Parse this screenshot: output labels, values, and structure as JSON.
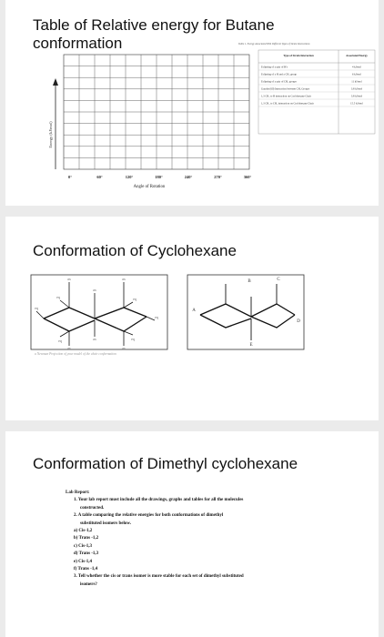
{
  "slide1": {
    "title_line1": "Table of Relative energy for Butane",
    "title_line2": "conformation",
    "y_axis_label": "Energy (kJ/mol)",
    "x_axis_label": "Angle of Rotation",
    "x_ticks": [
      "0°",
      "60°",
      "120°",
      "180°",
      "240°",
      "270°",
      "360°"
    ],
    "grid_rows": 10,
    "grid_cols": 12,
    "table_caption": "Table 1. Energy Associated With Different Types of Strain Interactions",
    "table_headers": [
      "Type of Strain Interaction",
      "Associated Energy"
    ],
    "table_rows": [
      [
        "Eclipsing of a pair of H's",
        "4 kJ/mol"
      ],
      [
        "Eclipsing of a H and a CH₃ group",
        "6 kJ/mol"
      ],
      [
        "Eclipsing of a pair of CH₃ groups",
        "11 kJ/mol"
      ],
      [
        "Gauche (60) Interaction between CH₃ Groups",
        "3.8 kJ/mol"
      ],
      [
        "1,3 CH₃ to H interaction on Cyclohexane Chair",
        "3.8 kJ/mol"
      ],
      [
        "1,3 CH₃ to CH₃ interaction on Cyclohexane Chair",
        "15.5 kJ/mol"
      ]
    ]
  },
  "slide2": {
    "title": "Conformation of Cyclohexane",
    "chair_labels": {
      "ax": "ax",
      "eq": "eq"
    },
    "letters": [
      "B",
      "C",
      "A",
      "D",
      "E"
    ],
    "bottom_caption": "a Newman Projection of your model of the chair conformation"
  },
  "slide3": {
    "title": "Conformation of Dimethyl cyclohexane",
    "heading": "Lab Report:",
    "items": [
      "1.  Your lab report must include all the drawings, graphs and tables for all the molecules",
      "constructed.",
      "2.  A table comparing the relative energies for both conformations of dimethyl",
      "substituted isomers below.",
      "a)  Cis-1,2",
      "b)  Trans -1,2",
      "c)  Cis-1,3",
      "d)  Trans -1,3",
      "e)  Cis-1,4",
      "f)  Trans -1,4",
      "3.  Tell whether the cis or trans isomer is more stable for each set of dimethyl substituted",
      "isomers?"
    ]
  }
}
